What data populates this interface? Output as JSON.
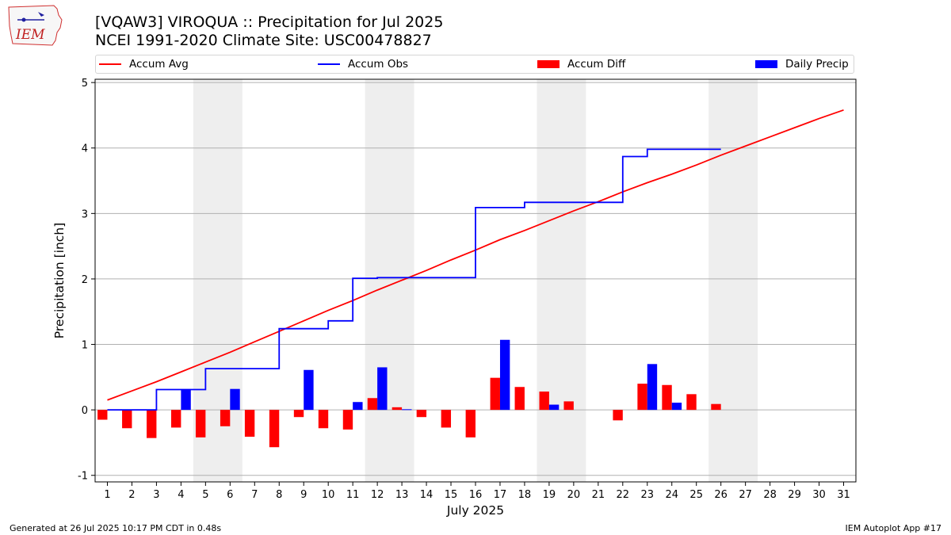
{
  "header": {
    "title_line1": "[VQAW3] VIROQUA :: Precipitation for Jul 2025",
    "title_line2": "NCEI 1991-2020 Climate Site: USC00478827",
    "logo_text": "IEM"
  },
  "legend": {
    "position": "top",
    "items": [
      {
        "label": "Accum Avg",
        "kind": "line",
        "color": "#ff0000"
      },
      {
        "label": "Accum Obs",
        "kind": "line",
        "color": "#0000ff"
      },
      {
        "label": "Accum Diff",
        "kind": "bar",
        "color": "#ff0000"
      },
      {
        "label": "Daily Precip",
        "kind": "bar",
        "color": "#0000ff"
      }
    ]
  },
  "footer": {
    "left": "Generated at 26 Jul 2025 10:17 PM CDT in 0.48s",
    "right": "IEM Autoplot App #17"
  },
  "chart_data": {
    "type": "bar",
    "xlabel": "July 2025",
    "ylabel": "Precipitation [inch]",
    "ylim": [
      -1.1,
      5.05
    ],
    "yticks": [
      -1,
      0,
      1,
      2,
      3,
      4,
      5
    ],
    "grid": true,
    "x": [
      1,
      2,
      3,
      4,
      5,
      6,
      7,
      8,
      9,
      10,
      11,
      12,
      13,
      14,
      15,
      16,
      17,
      18,
      19,
      20,
      21,
      22,
      23,
      24,
      25,
      26,
      27,
      28,
      29,
      30,
      31
    ],
    "weekend_shaded_days": [
      [
        5,
        6
      ],
      [
        12,
        13
      ],
      [
        19,
        20
      ],
      [
        26,
        27
      ]
    ],
    "series": [
      {
        "name": "Accum Avg",
        "type": "line",
        "color": "#ff0000",
        "values": [
          0.15,
          0.29,
          0.43,
          0.58,
          0.73,
          0.88,
          1.04,
          1.2,
          1.36,
          1.52,
          1.67,
          1.83,
          1.98,
          2.13,
          2.29,
          2.44,
          2.6,
          2.74,
          2.89,
          3.04,
          3.18,
          3.33,
          3.47,
          3.6,
          3.74,
          3.89,
          4.03,
          4.17,
          4.31,
          4.45,
          4.58
        ]
      },
      {
        "name": "Accum Obs",
        "type": "line",
        "color": "#0000ff",
        "values": [
          0.0,
          0.0,
          0.0,
          0.31,
          0.31,
          0.63,
          0.63,
          0.63,
          1.24,
          1.24,
          1.36,
          2.01,
          2.02,
          2.02,
          2.02,
          2.02,
          3.09,
          3.09,
          3.17,
          3.17,
          3.17,
          3.17,
          3.87,
          3.98,
          3.98,
          3.98,
          null,
          null,
          null,
          null,
          null
        ]
      },
      {
        "name": "Accum Diff",
        "type": "bar",
        "color": "#ff0000",
        "values": [
          -0.15,
          -0.28,
          -0.43,
          -0.27,
          -0.42,
          -0.25,
          -0.41,
          -0.57,
          -0.11,
          -0.28,
          -0.3,
          0.18,
          0.04,
          -0.11,
          -0.27,
          -0.42,
          0.49,
          0.35,
          0.28,
          0.13,
          0.0,
          -0.16,
          0.4,
          0.38,
          0.24,
          0.09,
          null,
          null,
          null,
          null,
          null
        ]
      },
      {
        "name": "Daily Precip",
        "type": "bar",
        "color": "#0000ff",
        "values": [
          0.0,
          0.0,
          0.0,
          0.31,
          0.0,
          0.32,
          0.0,
          0.0,
          0.61,
          0.0,
          0.12,
          0.65,
          0.01,
          0.0,
          0.0,
          0.0,
          1.07,
          0.0,
          0.08,
          0.0,
          0.0,
          0.0,
          0.7,
          0.11,
          0.0,
          0.0,
          null,
          null,
          null,
          null,
          null
        ]
      }
    ]
  }
}
